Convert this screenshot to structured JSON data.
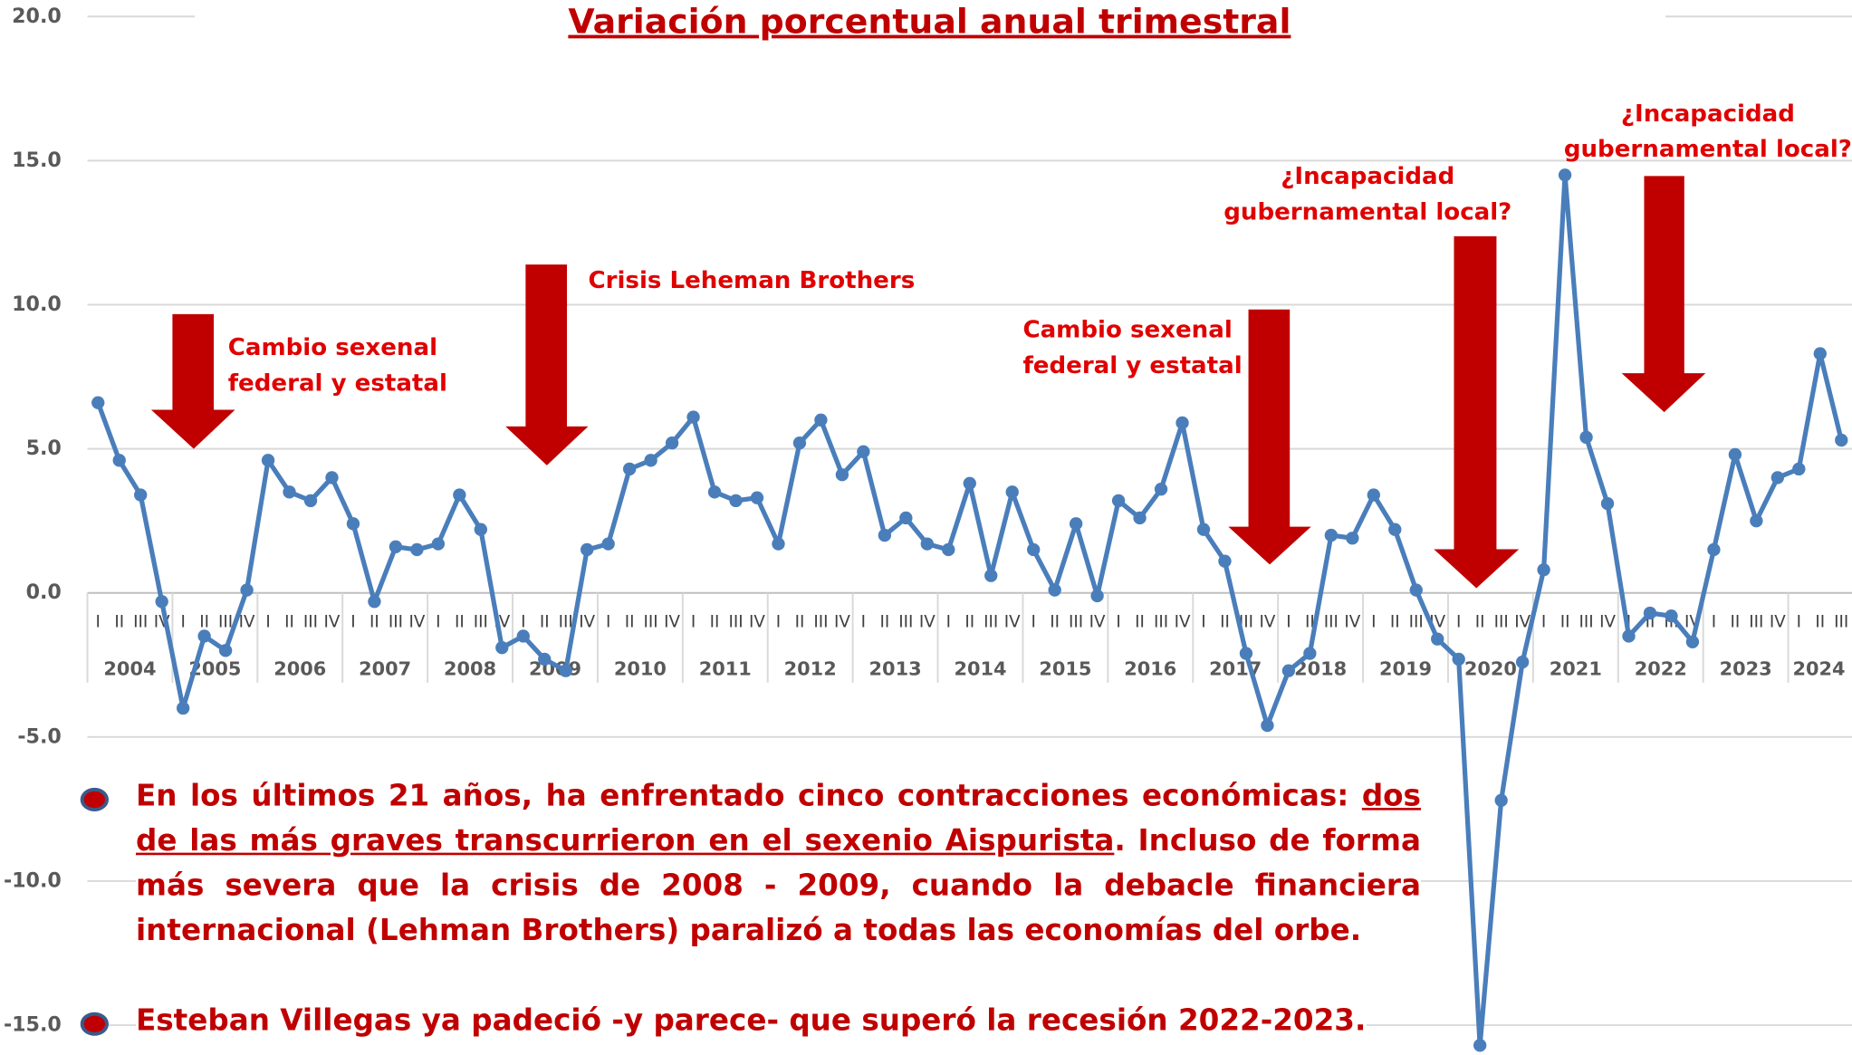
{
  "chart_data": {
    "type": "line",
    "title": "Variación porcentual anual trimestral",
    "years": [
      "2004",
      "2005",
      "2006",
      "2007",
      "2008",
      "2009",
      "2010",
      "2011",
      "2012",
      "2013",
      "2014",
      "2015",
      "2016",
      "2017",
      "2018",
      "2019",
      "2020",
      "2021",
      "2022",
      "2023",
      "2024"
    ],
    "categories": [
      "I",
      "II",
      "III",
      "IV",
      "I",
      "II",
      "III",
      "IV",
      "I",
      "II",
      "III",
      "IV",
      "I",
      "II",
      "III",
      "IV",
      "I",
      "II",
      "III",
      "IV",
      "I",
      "II",
      "III",
      "IV",
      "I",
      "II",
      "III",
      "IV",
      "I",
      "II",
      "III",
      "IV",
      "I",
      "II",
      "III",
      "IV",
      "I",
      "II",
      "III",
      "IV",
      "I",
      "II",
      "III",
      "IV",
      "I",
      "II",
      "III",
      "IV",
      "I",
      "II",
      "III",
      "IV",
      "I",
      "II",
      "III",
      "IV",
      "I",
      "II",
      "III",
      "IV",
      "I",
      "II",
      "III",
      "IV",
      "I",
      "II",
      "III",
      "IV",
      "I",
      "II",
      "III",
      "IV",
      "I",
      "II",
      "III",
      "IV",
      "I",
      "II",
      "III",
      "IV",
      "I",
      "II",
      "III"
    ],
    "series": [
      {
        "color": "#4a7ebb",
        "values": [
          6.6,
          4.6,
          3.4,
          -0.3,
          -4.0,
          -1.5,
          -2.0,
          0.1,
          4.6,
          3.5,
          3.2,
          4.0,
          2.4,
          -0.3,
          1.6,
          1.5,
          1.7,
          3.4,
          2.2,
          -1.9,
          -1.5,
          -2.3,
          -2.7,
          1.5,
          1.7,
          4.3,
          4.6,
          5.2,
          6.1,
          3.5,
          3.2,
          3.3,
          1.7,
          5.2,
          6.0,
          4.1,
          4.9,
          2.0,
          2.6,
          1.7,
          1.5,
          3.8,
          0.6,
          3.5,
          1.5,
          0.1,
          2.4,
          -0.1,
          3.2,
          2.6,
          3.6,
          5.9,
          2.2,
          1.1,
          -2.1,
          -4.6,
          -2.7,
          -2.1,
          2.0,
          1.9,
          3.4,
          2.2,
          0.1,
          -1.6,
          -2.3,
          -15.7,
          -7.2,
          -2.4,
          0.8,
          14.5,
          5.4,
          3.1,
          -1.5,
          -0.7,
          -0.8,
          -1.7,
          1.5,
          4.8,
          2.5,
          4.0,
          4.3,
          8.3,
          5.3
        ]
      }
    ],
    "ylim": [
      -15.7,
      20
    ],
    "yticks": [
      {
        "value": -15,
        "label": "-15.0"
      },
      {
        "value": -10,
        "label": "-10.0"
      },
      {
        "value": -5,
        "label": "-5.0"
      },
      {
        "value": 0,
        "label": "0.0"
      },
      {
        "value": 5,
        "label": "5.0"
      },
      {
        "value": 10,
        "label": "10.0"
      },
      {
        "value": 15,
        "label": "15.0"
      },
      {
        "value": 20,
        "label": "20.0"
      }
    ],
    "grid": true,
    "annotations": [
      {
        "lines": [
          "Cambio sexenal",
          "federal y estatal"
        ]
      },
      {
        "lines": [
          "Crisis Leheman Brothers"
        ]
      },
      {
        "lines": [
          "Cambio sexenal",
          "federal y estatal"
        ]
      },
      {
        "lines": [
          "¿Incapacidad",
          "gubernamental local?"
        ]
      },
      {
        "lines": [
          "¿Incapacidad",
          "gubernamental local?"
        ]
      }
    ],
    "notes": [
      [
        "En los últimos 21 años, ha enfrentado cinco contracciones económicas: ",
        "dos de las más graves transcurrieron en el sexenio Aispurista",
        ". Incluso de forma más severa que la crisis de 2008 - 2009, cuando la debacle financiera internacional (Lehman Brothers) paralizó a todas las economías del orbe."
      ],
      [
        "Esteban Villegas ya padeció -y parece- que superó la recesión 2022-2023."
      ]
    ]
  }
}
